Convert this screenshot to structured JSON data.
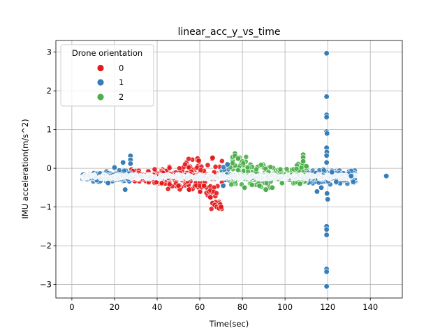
{
  "chart_data": {
    "type": "scatter",
    "title": "linear_acc_y_vs_time",
    "xlabel": "Time(sec)",
    "ylabel": "IMU acceleration(m/s^2)",
    "xlim": [
      -7.5,
      155
    ],
    "ylim": [
      -3.35,
      3.3
    ],
    "xticks": [
      0,
      20,
      40,
      60,
      80,
      100,
      120,
      140
    ],
    "yticks": [
      -3,
      -2,
      -1,
      0,
      1,
      2,
      3
    ],
    "xtick_labels": [
      "0",
      "20",
      "40",
      "60",
      "80",
      "100",
      "120",
      "140"
    ],
    "ytick_labels": [
      "−3",
      "−2",
      "−1",
      "0",
      "1",
      "2",
      "3"
    ],
    "grid": true,
    "legend": {
      "title": "Drone orientation",
      "placement": "top-left",
      "entries": [
        {
          "label": "0",
          "color": "#e41a1c"
        },
        {
          "label": "1",
          "color": "#377eb8"
        },
        {
          "label": "2",
          "color": "#4daf4a"
        }
      ]
    },
    "series": [
      {
        "name": "0",
        "color": "#e41a1c",
        "bands": [
          {
            "x0": 27.5,
            "x1": 36,
            "lo": -0.38,
            "hi": -0.02
          },
          {
            "x0": 36,
            "x1": 45,
            "lo": -0.4,
            "hi": -0.02
          },
          {
            "x0": 45,
            "x1": 53,
            "lo": -0.55,
            "hi": 0.05
          },
          {
            "x0": 53,
            "x1": 60,
            "lo": -0.55,
            "hi": 0.25
          },
          {
            "x0": 60,
            "x1": 64,
            "lo": -0.7,
            "hi": 0.1
          },
          {
            "x0": 64,
            "x1": 70.5,
            "lo": -1.05,
            "hi": 0.3
          }
        ],
        "points": [
          {
            "x": 55,
            "y": -0.55
          },
          {
            "x": 59,
            "y": 0.25
          },
          {
            "x": 59.5,
            "y": 0.2
          },
          {
            "x": 66,
            "y": -0.9
          },
          {
            "x": 67,
            "y": -0.95
          },
          {
            "x": 68,
            "y": -1.0
          },
          {
            "x": 69,
            "y": -1.03
          },
          {
            "x": 70,
            "y": -1.0
          },
          {
            "x": 66,
            "y": 0.27
          },
          {
            "x": 65,
            "y": -0.75
          },
          {
            "x": 62,
            "y": -0.45
          },
          {
            "x": 50,
            "y": -0.45
          }
        ]
      },
      {
        "name": "1",
        "color": "#377eb8",
        "bands": [
          {
            "x0": 5,
            "x1": 9,
            "lo": -0.3,
            "hi": -0.2
          },
          {
            "x0": 9,
            "x1": 16,
            "lo": -0.35,
            "hi": -0.12
          },
          {
            "x0": 16,
            "x1": 22,
            "lo": -0.38,
            "hi": -0.08
          },
          {
            "x0": 22,
            "x1": 28,
            "lo": -0.35,
            "hi": -0.05
          },
          {
            "x0": 70,
            "x1": 74,
            "lo": -0.35,
            "hi": 0.1
          },
          {
            "x0": 108,
            "x1": 118,
            "lo": -0.4,
            "hi": -0.05
          },
          {
            "x0": 118,
            "x1": 125,
            "lo": -0.45,
            "hi": 0.0
          },
          {
            "x0": 125,
            "x1": 133,
            "lo": -0.4,
            "hi": -0.05
          }
        ],
        "points": [
          {
            "x": 24,
            "y": 0.15
          },
          {
            "x": 25,
            "y": -0.55
          },
          {
            "x": 27.5,
            "y": 0.32
          },
          {
            "x": 27.5,
            "y": 0.22
          },
          {
            "x": 27.5,
            "y": 0.12
          },
          {
            "x": 20,
            "y": 0.02
          },
          {
            "x": 17,
            "y": -0.38
          },
          {
            "x": 71,
            "y": -0.45
          },
          {
            "x": 73,
            "y": 0.1
          },
          {
            "x": 115,
            "y": -0.6
          },
          {
            "x": 117,
            "y": -0.5
          },
          {
            "x": 120,
            "y": -0.8
          },
          {
            "x": 119.7,
            "y": -0.65
          },
          {
            "x": 119.5,
            "y": 2.97
          },
          {
            "x": 119.5,
            "y": 1.85
          },
          {
            "x": 119.5,
            "y": 1.38
          },
          {
            "x": 119.5,
            "y": 1.32
          },
          {
            "x": 119.5,
            "y": 0.95
          },
          {
            "x": 119.7,
            "y": 0.9
          },
          {
            "x": 119.5,
            "y": 0.53
          },
          {
            "x": 119.6,
            "y": 0.42
          },
          {
            "x": 119.5,
            "y": 0.33
          },
          {
            "x": 119.5,
            "y": 0.15
          },
          {
            "x": 119.5,
            "y": -1.5
          },
          {
            "x": 119.5,
            "y": -1.58
          },
          {
            "x": 119.5,
            "y": -1.72
          },
          {
            "x": 119.5,
            "y": -2.6
          },
          {
            "x": 119.5,
            "y": -2.67
          },
          {
            "x": 119.5,
            "y": -3.05
          },
          {
            "x": 122,
            "y": -0.1
          },
          {
            "x": 124,
            "y": -0.35
          },
          {
            "x": 131,
            "y": -0.2
          },
          {
            "x": 132,
            "y": -0.35
          },
          {
            "x": 147.5,
            "y": -0.2
          }
        ]
      },
      {
        "name": "2",
        "color": "#4daf4a",
        "bands": [
          {
            "x0": 74,
            "x1": 82,
            "lo": -0.45,
            "hi": 0.3
          },
          {
            "x0": 82,
            "x1": 90,
            "lo": -0.5,
            "hi": 0.1
          },
          {
            "x0": 90,
            "x1": 96,
            "lo": -0.55,
            "hi": 0.05
          },
          {
            "x0": 96,
            "x1": 104,
            "lo": -0.4,
            "hi": 0.0
          },
          {
            "x0": 104,
            "x1": 111,
            "lo": -0.4,
            "hi": 0.15
          }
        ],
        "points": [
          {
            "x": 76.5,
            "y": 0.38
          },
          {
            "x": 76.5,
            "y": 0.32
          },
          {
            "x": 78,
            "y": 0.25
          },
          {
            "x": 81,
            "y": -0.5
          },
          {
            "x": 88,
            "y": -0.45
          },
          {
            "x": 91,
            "y": -0.55
          },
          {
            "x": 94,
            "y": -0.5
          },
          {
            "x": 108.5,
            "y": 0.35
          },
          {
            "x": 108.5,
            "y": 0.28
          },
          {
            "x": 108.5,
            "y": 0.18
          },
          {
            "x": 107,
            "y": -0.4
          },
          {
            "x": 110,
            "y": 0.05
          }
        ]
      }
    ]
  }
}
